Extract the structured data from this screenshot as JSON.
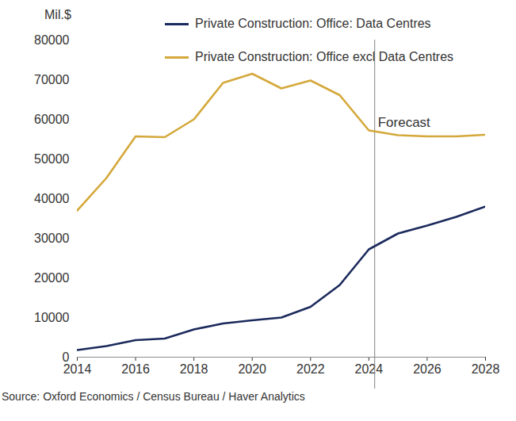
{
  "chart_data": {
    "type": "line",
    "y_label": "Mil.$",
    "x": [
      2014,
      2015,
      2016,
      2017,
      2018,
      2019,
      2020,
      2021,
      2022,
      2023,
      2024,
      2025,
      2026,
      2027,
      2028
    ],
    "xlim": [
      2014,
      2028
    ],
    "xticks": [
      2014,
      2016,
      2018,
      2020,
      2022,
      2024,
      2026,
      2028
    ],
    "ylim": [
      0,
      80000
    ],
    "yticks": [
      0,
      10000,
      20000,
      30000,
      40000,
      50000,
      60000,
      70000,
      80000
    ],
    "grid": false,
    "legend": "top",
    "series": [
      {
        "name": "Private Construction: Office: Data Centres",
        "color": "#1b2a5c",
        "values": [
          1800,
          2800,
          4300,
          4700,
          7000,
          8500,
          9300,
          10000,
          12700,
          18200,
          27200,
          31200,
          33200,
          35400,
          38000
        ]
      },
      {
        "name": "Private Construction: Office excl Data Centres",
        "color": "#d4a83a",
        "values": [
          37000,
          45200,
          55700,
          55500,
          60000,
          69200,
          71500,
          67800,
          69800,
          66100,
          57200,
          56000,
          55700,
          55700,
          56100
        ]
      }
    ],
    "annotations": [
      {
        "x": 2024.2,
        "label": "Forecast"
      }
    ],
    "source": "Source: Oxford Economics / Census Bureau / Haver Analytics"
  }
}
